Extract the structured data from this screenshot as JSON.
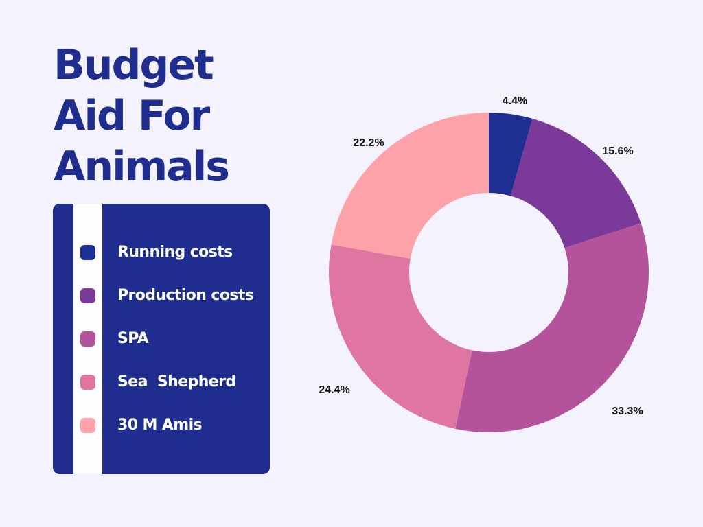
{
  "title_lines": [
    "Budget",
    "Aid For",
    "Animals"
  ],
  "chart_data": {
    "type": "pie",
    "title": "Budget Aid For Animals",
    "donut": true,
    "categories": [
      "Running costs",
      "Production costs",
      "SPA",
      "Sea  Shepherd",
      "30 M Amis"
    ],
    "values": [
      4.4,
      15.6,
      33.3,
      24.4,
      22.2
    ],
    "value_labels": [
      "4.4%",
      "15.6%",
      "33.3%",
      "24.4%",
      "22.2%"
    ],
    "colors": [
      "#1f2e93",
      "#7b3a9a",
      "#b4529b",
      "#df75a1",
      "#fda2a9"
    ],
    "legend_placement": "left"
  }
}
